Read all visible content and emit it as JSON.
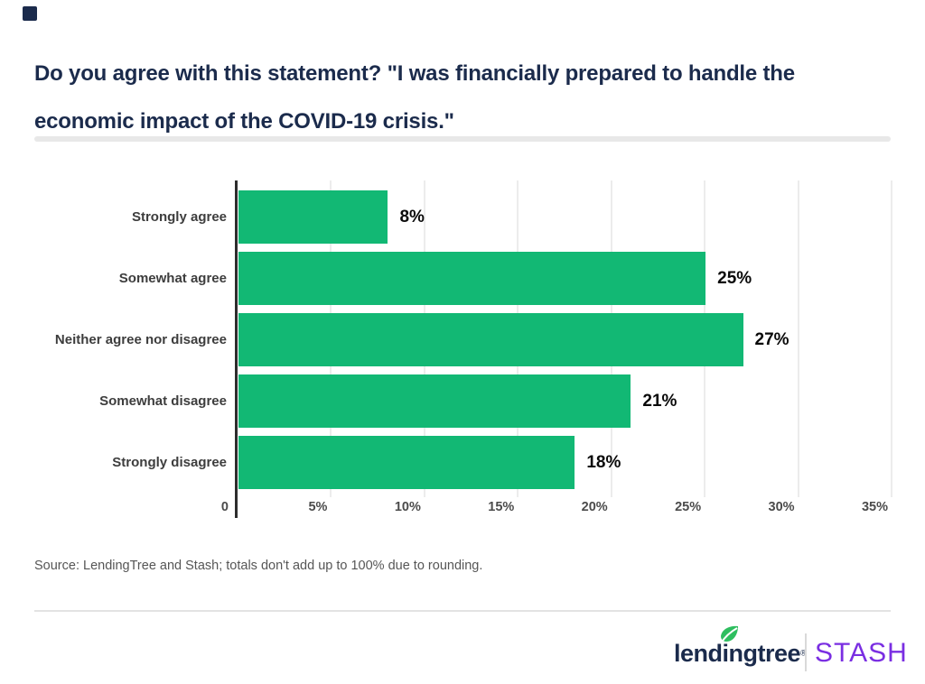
{
  "accent": {
    "square_color": "#1b2b4c"
  },
  "header": {
    "title_lines": [
      "Do you agree with this statement? \"I was financially prepared to handle the",
      "economic impact of the COVID-19 crisis.\""
    ],
    "title_color": "#1b2b4c"
  },
  "chart_data": {
    "type": "bar",
    "orientation": "horizontal",
    "title": "Do you agree with this statement? \"I was financially prepared to handle the economic impact of the COVID-19 crisis.\"",
    "categories": [
      "Strongly agree",
      "Somewhat agree",
      "Neither agree nor disagree",
      "Somewhat disagree",
      "Strongly disagree"
    ],
    "values": [
      8,
      25,
      27,
      21,
      18
    ],
    "value_labels": [
      "8%",
      "25%",
      "27%",
      "21%",
      "18%"
    ],
    "x_tick_labels": [
      "0",
      "5%",
      "10%",
      "15%",
      "20%",
      "25%",
      "30%",
      "35%"
    ],
    "x_tick_values": [
      0,
      5,
      10,
      15,
      20,
      25,
      30,
      35
    ],
    "xlim": [
      0,
      35
    ],
    "xlabel": "",
    "ylabel": "",
    "grid": true,
    "legend": "none",
    "bar_color": "#12b874",
    "gridline_color": "#ececec",
    "axis_color": "#2d2d2d"
  },
  "source": {
    "text": "Source: LendingTree and Stash; totals don't add up to 100% due to rounding."
  },
  "footer": {
    "lendingtree_label": "lendingtree",
    "registered_mark": "®",
    "stash_label": "STASH",
    "lendingtree_color": "#1b2b4c",
    "leaf_color": "#2ebe5f",
    "stash_color": "#7a2ee2"
  }
}
